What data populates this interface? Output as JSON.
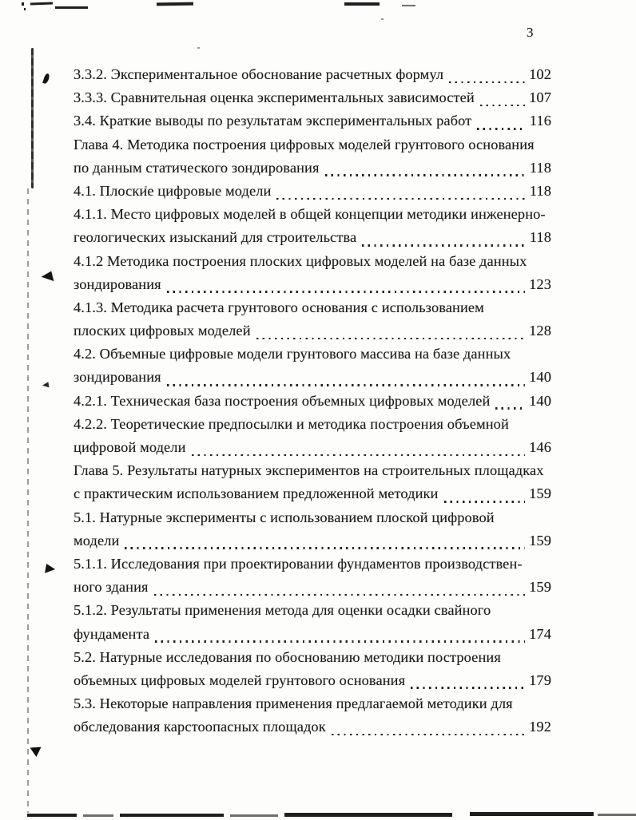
{
  "header": {
    "page_number": "3"
  },
  "colors": {
    "ink": "#1b1b1b",
    "paper": "#fdfdfb"
  },
  "toc": {
    "rows": [
      {
        "text": "3.3.2. Экспериментальное обоснование расчетных формул",
        "page": "102"
      },
      {
        "text": "3.3.3. Сравнительная оценка экспериментальных зависимостей",
        "page": "107"
      },
      {
        "text": "3.4. Краткие выводы по результатам экспериментальных работ",
        "page": "116"
      },
      {
        "text": "Глава 4. Методика построения цифровых моделей грунтового основания",
        "page": null
      },
      {
        "text": "по данным статического зондирования",
        "page": "118"
      },
      {
        "text": "4.1. Плоские цифровые модели",
        "page": "118"
      },
      {
        "text": "4.1.1. Место цифровых моделей в общей концепции методики инженерно-",
        "page": null
      },
      {
        "text": "геологических изысканий для строительства",
        "page": "118"
      },
      {
        "text": "4.1.2 Методика построения плоских цифровых моделей на базе данных",
        "page": null
      },
      {
        "text": "зондирования",
        "page": "123"
      },
      {
        "text": "4.1.3. Методика расчета грунтового основания с использованием",
        "page": null
      },
      {
        "text": "плоских цифровых моделей",
        "page": "128"
      },
      {
        "text": "4.2. Объемные цифровые модели грунтового массива на базе данных",
        "page": null
      },
      {
        "text": "зондирования",
        "page": "140"
      },
      {
        "text": "4.2.1. Техническая база построения объемных цифровых моделей",
        "page": "140"
      },
      {
        "text": "4.2.2. Теоретические предпосылки и методика построения объемной",
        "page": null
      },
      {
        "text": "цифровой модели",
        "page": "146"
      },
      {
        "text": "Глава 5. Результаты натурных экспериментов на строительных площадках",
        "page": null
      },
      {
        "text": "с практическим использованием предложенной методики",
        "page": "159"
      },
      {
        "text": "5.1. Натурные эксперименты с использованием плоской цифровой",
        "page": null
      },
      {
        "text": "модели",
        "page": "159"
      },
      {
        "text": "5.1.1. Исследования при проектировании фундаментов производствен-",
        "page": null
      },
      {
        "text": "ного здания",
        "page": "159"
      },
      {
        "text": "5.1.2. Результаты применения метода для оценки осадки свайного",
        "page": null
      },
      {
        "text": "фундамента",
        "page": "174"
      },
      {
        "text": "5.2. Натурные исследования по обоснованию методики построения",
        "page": null
      },
      {
        "text": "объемных цифровых моделей грунтового основания",
        "page": "179"
      },
      {
        "text": "5.3. Некоторые направления применения предлагаемой методики для",
        "page": null
      },
      {
        "text": "обследования карстоопасных площадок",
        "page": "192"
      }
    ]
  }
}
